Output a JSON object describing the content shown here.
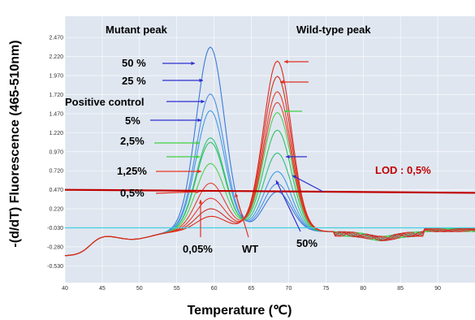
{
  "colors": {
    "plot_bg": "#dfe6f0",
    "lod_line": "#c00000",
    "lod_text": "#c00000",
    "arrow_blue": "#2f2fd0",
    "arrow_red": "#e03020",
    "arrow_green": "#40d040",
    "baseline": "#40d0e0"
  },
  "chart_data": {
    "type": "line",
    "title": "",
    "xlabel": "Temperature (℃)",
    "ylabel": "-(d/dT) Fluorescence (465-510nm)",
    "xlim": [
      40,
      95
    ],
    "ylim": [
      -0.75,
      2.75
    ],
    "x_ticks": [
      "40",
      "45",
      "50",
      "55",
      "60",
      "65",
      "70",
      "75",
      "80",
      "85",
      "90"
    ],
    "y_ticks": [
      "2.470",
      "2.220",
      "1.970",
      "1.720",
      "1.470",
      "1.220",
      "0.970",
      "0.720",
      "0.470",
      "0.220",
      "-0.030",
      "-0.280",
      "-0.530"
    ],
    "lod": {
      "label": "LOD : 0,5%",
      "y_start": 0.47,
      "y_end": 0.43
    },
    "annotations": {
      "mutant_peak": "Mutant peak",
      "wildtype_peak": "Wild-type peak",
      "s50": "50 %",
      "s25": "25 %",
      "positive_control": "Positive control",
      "s5": "5%",
      "s2_5": "2,5%",
      "s1_25": "1,25%",
      "s0_5": "0,5%",
      "s0_05": "0,05%",
      "wt": "WT",
      "s50b": "50%"
    },
    "mutant_peak_temp": 59.5,
    "wildtype_peak_temp": 68.5,
    "series": [
      {
        "color": "#3a7ad8",
        "mut": 2.42,
        "wt": 0.52
      },
      {
        "color": "#4d8ee0",
        "mut": 1.8,
        "wt": 0.62
      },
      {
        "color": "#3f9ae6",
        "mut": 1.58,
        "wt": 0.78
      },
      {
        "color": "#2ec07a",
        "mut": 1.22,
        "wt": 1.02
      },
      {
        "color": "#30c060",
        "mut": 1.16,
        "wt": 1.32
      },
      {
        "color": "#50d050",
        "mut": 0.88,
        "wt": 1.55
      },
      {
        "color": "#e04030",
        "mut": 0.62,
        "wt": 1.68
      },
      {
        "color": "#e83a2a",
        "mut": 0.42,
        "wt": 1.82
      },
      {
        "color": "#d03020",
        "mut": 0.28,
        "wt": 2.02
      },
      {
        "color": "#e02818",
        "mut": 0.18,
        "wt": 2.22
      }
    ]
  }
}
